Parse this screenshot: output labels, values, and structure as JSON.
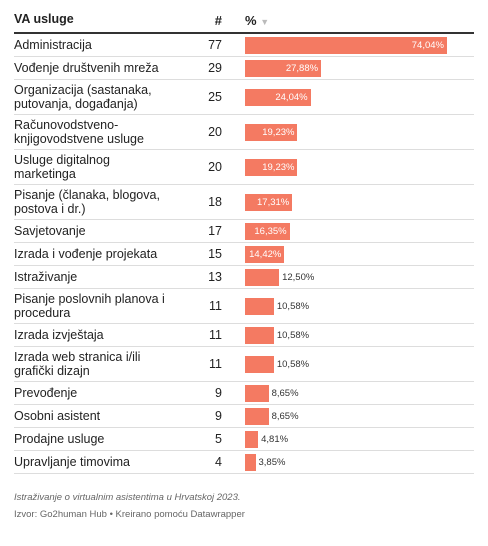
{
  "chart_data": {
    "type": "bar",
    "headers": [
      "VA usluge",
      "#",
      "%"
    ],
    "categories": [
      "Administracija",
      "Vođenje društvenih mreža",
      "Organizacija (sastanaka, putovanja, događanja)",
      "Računovodstveno-knjigovodstvene usluge",
      "Usluge digitalnog marketinga",
      "Pisanje (članaka, blogova, postova i dr.)",
      "Savjetovanje",
      "Izrada i vođenje projekata",
      "Istraživanje",
      "Pisanje poslovnih planova i procedura",
      "Izrada izvještaja",
      "Izrada web stranica i/ili grafički dizajn",
      "Prevođenje",
      "Osobni asistent",
      "Prodajne usluge",
      "Upravljanje timovima"
    ],
    "counts": [
      77,
      29,
      25,
      20,
      20,
      18,
      17,
      15,
      13,
      11,
      11,
      11,
      9,
      9,
      5,
      4
    ],
    "values": [
      74.04,
      27.88,
      24.04,
      19.23,
      19.23,
      17.31,
      16.35,
      14.42,
      12.5,
      10.58,
      10.58,
      10.58,
      8.65,
      8.65,
      4.81,
      3.85
    ],
    "value_labels": [
      "74,04%",
      "27,88%",
      "24,04%",
      "19,23%",
      "19,23%",
      "17,31%",
      "16,35%",
      "14,42%",
      "12,50%",
      "10,58%",
      "10,58%",
      "10,58%",
      "8,65%",
      "8,65%",
      "4,81%",
      "3,85%"
    ],
    "color": "#f47a62",
    "notes": "Istraživanje o virtualnim asistentima u Hrvatskoj 2023.",
    "source": "Izvor: Go2human Hub • Kreirano pomoću Datawrapper"
  }
}
